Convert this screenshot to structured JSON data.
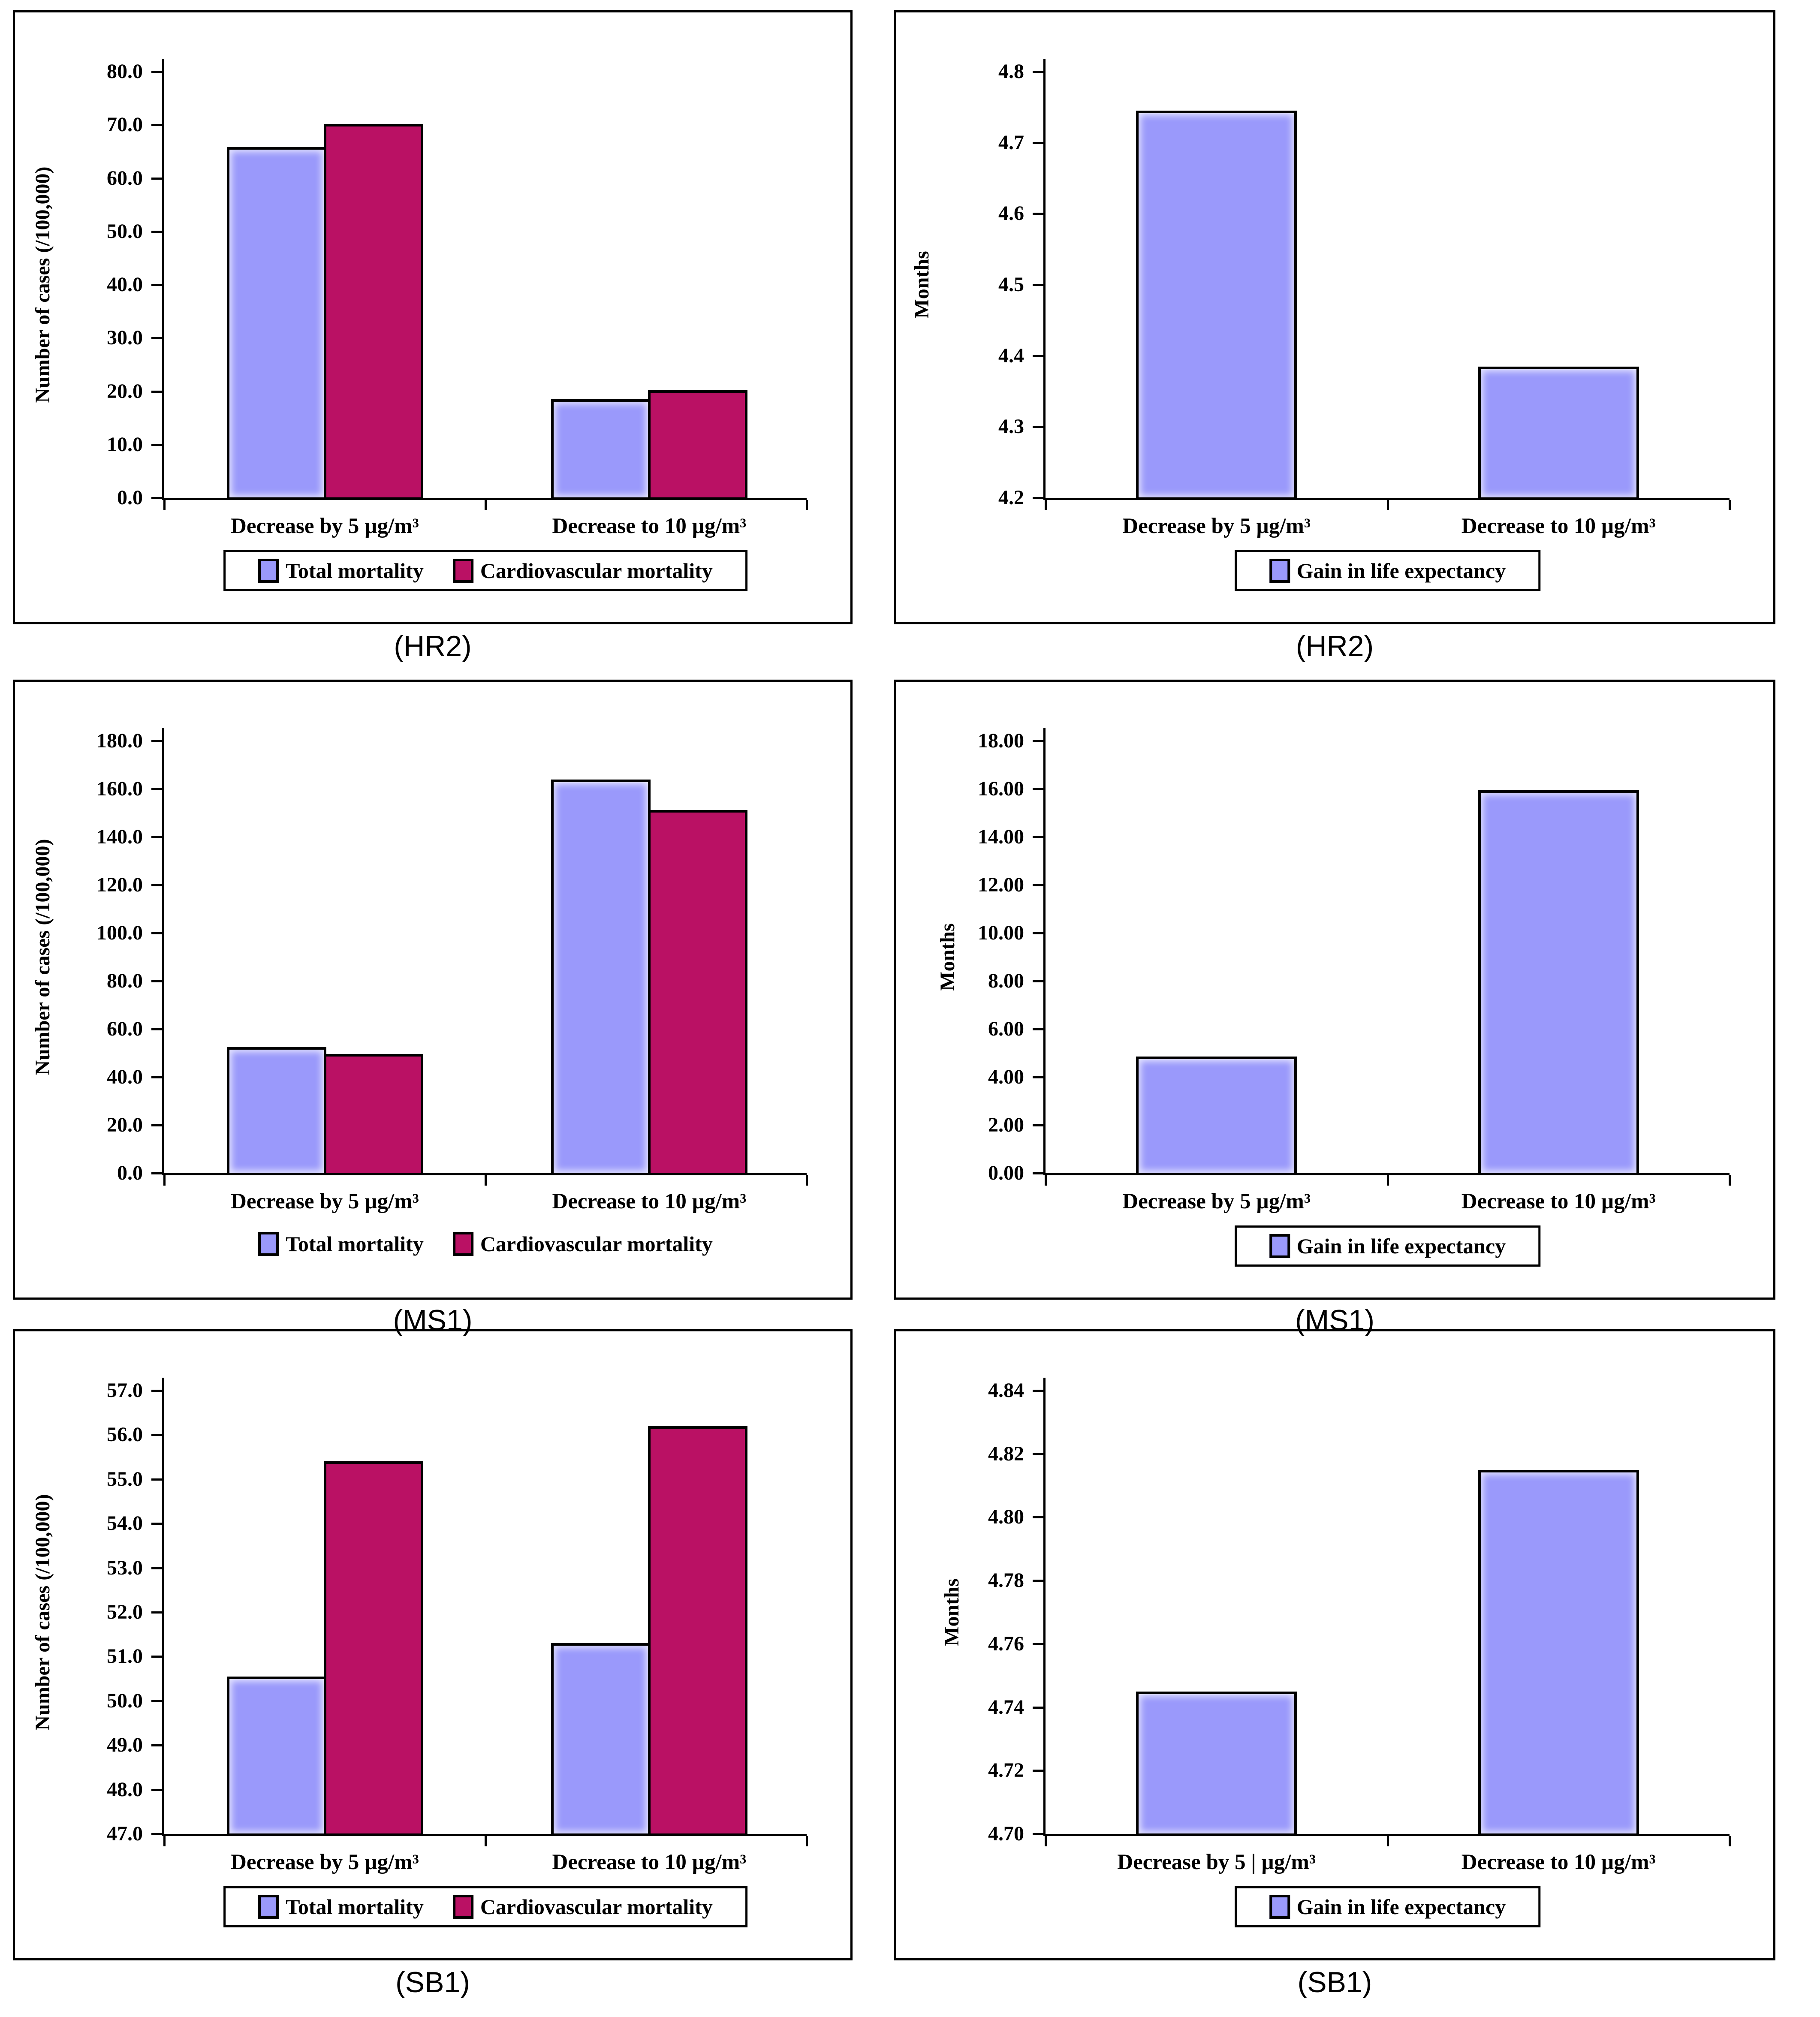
{
  "colors": {
    "total_mortality": "#9a99fb",
    "cardiovascular_mortality": "#ba1164",
    "gain_in_life_expectancy": "#9a99fb",
    "axis": "#000000",
    "background": "#ffffff"
  },
  "chart_data": [
    {
      "id": "hr2-mortality",
      "type": "bar",
      "caption": "(HR2)",
      "ylabel": "Number of cases (/100,000)",
      "ymin": 0,
      "ymax": 80,
      "grid": false,
      "legend_position": "bottom",
      "yticks": [
        "0.0",
        "10.0",
        "20.0",
        "30.0",
        "40.0",
        "50.0",
        "60.0",
        "70.0",
        "80.0"
      ],
      "categories": [
        "Decrease by 5  µg/m³",
        "Decrease to 10  µg/m³"
      ],
      "series": [
        {
          "name": "Total mortality",
          "color": "#9a99fb",
          "values": [
            65.8,
            18.5
          ]
        },
        {
          "name": "Cardiovascular mortality",
          "color": "#ba1164",
          "values": [
            70.2,
            20.2
          ]
        }
      ],
      "legend": {
        "boxed": true,
        "entries": [
          "Total mortality",
          "Cardiovascular mortality"
        ]
      }
    },
    {
      "id": "hr2-life-expectancy",
      "type": "bar",
      "caption": "(HR2)",
      "ylabel": "Months",
      "ymin": 4.2,
      "ymax": 4.8,
      "grid": false,
      "legend_position": "bottom",
      "yticks": [
        "4.2",
        "4.3",
        "4.4",
        "4.5",
        "4.6",
        "4.7",
        "4.8"
      ],
      "categories": [
        "Decrease by 5  µg/m³",
        "Decrease to 10  µg/m³"
      ],
      "series": [
        {
          "name": "Gain in life expectancy",
          "color": "#9a99fb",
          "values": [
            4.745,
            4.385
          ]
        }
      ],
      "legend": {
        "boxed": true,
        "entries": [
          "Gain in life expectancy"
        ]
      }
    },
    {
      "id": "ms1-mortality",
      "type": "bar",
      "caption": "(MS1)",
      "ylabel": "Number of cases (/100,000)",
      "ymin": 0,
      "ymax": 180,
      "grid": false,
      "legend_position": "bottom",
      "yticks": [
        "0.0",
        "20.0",
        "40.0",
        "60.0",
        "80.0",
        "100.0",
        "120.0",
        "140.0",
        "160.0",
        "180.0"
      ],
      "categories": [
        "Decrease by 5  µg/m³",
        "Decrease to 10  µg/m³"
      ],
      "series": [
        {
          "name": "Total mortality",
          "color": "#9a99fb",
          "values": [
            52.5,
            164.0
          ]
        },
        {
          "name": "Cardiovascular mortality",
          "color": "#ba1164",
          "values": [
            49.6,
            151.3
          ]
        }
      ],
      "legend": {
        "boxed": false,
        "entries": [
          "Total mortality",
          "Cardiovascular mortality"
        ]
      }
    },
    {
      "id": "ms1-life-expectancy",
      "type": "bar",
      "caption": "(MS1)",
      "ylabel": "Months",
      "ymin": 0,
      "ymax": 18,
      "grid": false,
      "legend_position": "bottom",
      "yticks": [
        "0.00",
        "2.00",
        "4.00",
        "6.00",
        "8.00",
        "10.00",
        "12.00",
        "14.00",
        "16.00",
        "18.00"
      ],
      "categories": [
        "Decrease by 5   µg/m³",
        "Decrease to 10  µg/m³"
      ],
      "series": [
        {
          "name": "Gain in life expectancy",
          "color": "#9a99fb",
          "values": [
            4.85,
            15.95
          ]
        }
      ],
      "legend": {
        "boxed": true,
        "entries": [
          "Gain in life expectancy"
        ]
      }
    },
    {
      "id": "sb1-mortality",
      "type": "bar",
      "caption": "(SB1)",
      "ylabel": "Number of cases (/100,000)",
      "ymin": 47,
      "ymax": 57,
      "grid": false,
      "legend_position": "bottom",
      "yticks": [
        "47.0",
        "48.0",
        "49.0",
        "50.0",
        "51.0",
        "52.0",
        "53.0",
        "54.0",
        "55.0",
        "56.0",
        "57.0"
      ],
      "categories": [
        "Decrease by 5   µg/m³",
        "Decrease to 10  µg/m³"
      ],
      "series": [
        {
          "name": "Total mortality",
          "color": "#9a99fb",
          "values": [
            50.55,
            51.3
          ]
        },
        {
          "name": "Cardiovascular mortality",
          "color": "#ba1164",
          "values": [
            55.4,
            56.2
          ]
        }
      ],
      "legend": {
        "boxed": true,
        "entries": [
          "Total mortality",
          "Cardiovascular mortality"
        ]
      }
    },
    {
      "id": "sb1-life-expectancy",
      "type": "bar",
      "caption": "(SB1)",
      "ylabel": "Months",
      "ymin": 4.7,
      "ymax": 4.84,
      "grid": false,
      "legend_position": "bottom",
      "yticks": [
        "4.70",
        "4.72",
        "4.74",
        "4.76",
        "4.78",
        "4.80",
        "4.82",
        "4.84"
      ],
      "categories": [
        "Decrease by 5 |  µg/m³",
        "Decrease to 10  µg/m³"
      ],
      "series": [
        {
          "name": "Gain in life expectancy",
          "color": "#9a99fb",
          "values": [
            4.745,
            4.815
          ]
        }
      ],
      "legend": {
        "boxed": true,
        "entries": [
          "Gain in life expectancy"
        ]
      }
    }
  ]
}
